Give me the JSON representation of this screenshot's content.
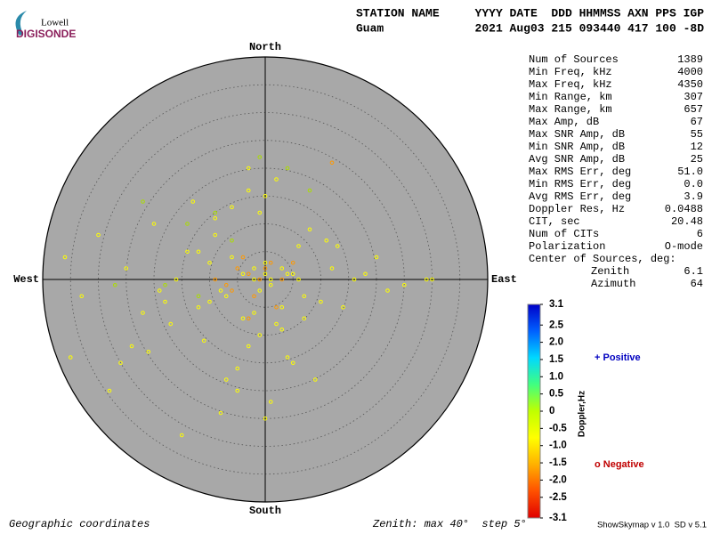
{
  "header": {
    "logo_top": "Lowell",
    "logo_bottom": "DIGISONDE",
    "station_label": "STATION NAME",
    "station": "Guam",
    "columns": "YYYY DATE  DDD HHMMSS AXN PPS IGP",
    "values": "2021 Aug03 215 093440 417 100 -8D"
  },
  "stats": {
    "rows": [
      [
        "Num of Sources",
        "1389"
      ],
      [
        "Min Freq, kHz",
        "4000"
      ],
      [
        "Max Freq, kHz",
        "4350"
      ],
      [
        "Min Range, km",
        "307"
      ],
      [
        "Max Range, km",
        "657"
      ],
      [
        "Max Amp, dB",
        "67"
      ],
      [
        "Max SNR Amp, dB",
        "55"
      ],
      [
        "Min SNR Amp, dB",
        "12"
      ],
      [
        "Avg SNR Amp, dB",
        "25"
      ],
      [
        "Max RMS Err, deg",
        "51.0"
      ],
      [
        "Min RMS Err, deg",
        "0.0"
      ],
      [
        "Avg RMS Err, deg",
        "3.9"
      ],
      [
        "Doppler Res, Hz",
        "0.0488"
      ],
      [
        "CIT, sec",
        "20.48"
      ],
      [
        "Num of CITs",
        "6"
      ],
      [
        "Polarization",
        "O-mode"
      ]
    ],
    "center_title": "Center of Sources, deg:",
    "center_rows": [
      [
        "Zenith",
        "6.1"
      ],
      [
        "Azimuth",
        "64"
      ]
    ]
  },
  "colorbar": {
    "label": "Doppler,Hz",
    "range": [
      -3.1,
      3.1
    ],
    "ticks": [
      3.1,
      2.5,
      {
        "value": 2,
        "label": "2.0"
      },
      1.5,
      {
        "value": 1,
        "label": "1.0"
      },
      0.5,
      0,
      -0.5,
      {
        "value": -1,
        "label": "-1.0"
      },
      -1.5,
      {
        "value": -2,
        "label": "-2.0"
      },
      -2.5,
      -3.1
    ],
    "positive": "+ Positive",
    "negative": "o Negative"
  },
  "footer": {
    "left": "Geographic coordinates",
    "middle": "Zenith: max 40°  step 5°",
    "right": "ShowSkymap v 1.0  SD v 5.1"
  },
  "chart_data": {
    "type": "scatter",
    "directions": {
      "north": "North",
      "south": "South",
      "east": "East",
      "west": "West"
    },
    "xlim": [
      -40,
      40
    ],
    "ylim": [
      -40,
      40
    ],
    "rings": [
      5,
      10,
      15,
      20,
      25,
      30,
      35,
      40
    ],
    "series": [
      {
        "color": "#ffff00",
        "x": [
          -2,
          -4,
          0,
          1,
          3,
          -6,
          -8,
          5,
          7,
          -10,
          -12,
          2,
          -1,
          -3,
          4,
          6,
          8,
          10,
          12,
          -5,
          -7,
          -9,
          -14,
          -16,
          -18,
          -20,
          -22,
          -25,
          -30,
          -33,
          -36,
          -35,
          -28,
          14,
          16,
          18,
          20,
          22,
          25,
          29,
          30,
          -1,
          0,
          2,
          -3,
          -5,
          1,
          3,
          -2,
          -6,
          -11,
          -13,
          0,
          -4,
          -8,
          -15,
          5,
          9,
          11,
          -24,
          -17,
          -3,
          -1,
          1,
          -2,
          0,
          4,
          -7,
          -10,
          6,
          -19,
          13,
          -26,
          -9,
          -12,
          3,
          7,
          -21
        ],
        "values": [
          2,
          1,
          3,
          0,
          2,
          4,
          -2,
          1,
          -3,
          3,
          -5,
          -8,
          -10,
          -12,
          -14,
          6,
          9,
          -4,
          2,
          -16,
          -18,
          8,
          5,
          0,
          -4,
          10,
          -6,
          2,
          8,
          -3,
          4,
          -14,
          -20,
          -5,
          0,
          1,
          4,
          -2,
          -1,
          0,
          0,
          12,
          15,
          18,
          20,
          -20,
          -22,
          -9,
          -6,
          13,
          -11,
          14,
          -25,
          -7,
          -24,
          -28,
          -15,
          -18,
          7,
          -12,
          -8,
          16,
          -2,
          -1,
          0,
          1,
          1,
          -3,
          -4,
          0,
          -2,
          6,
          -15,
          11,
          5,
          -5,
          -7,
          -13
        ]
      },
      {
        "color": "#ff9900",
        "x": [
          -3,
          -5,
          -1,
          1,
          -7,
          -2,
          0,
          -4,
          3,
          5,
          -6,
          12,
          2,
          -9,
          -3
        ],
        "values": [
          1,
          2,
          0,
          3,
          -1,
          -3,
          2,
          4,
          0,
          3,
          -2,
          21,
          -5,
          0,
          -7
        ]
      },
      {
        "color": "#aadd00",
        "x": [
          -14,
          -9,
          -6,
          -22,
          -18,
          4,
          -1,
          -27,
          8,
          -12
        ],
        "values": [
          10,
          12,
          7,
          14,
          -1,
          20,
          22,
          -1,
          16,
          -3
        ]
      }
    ]
  }
}
